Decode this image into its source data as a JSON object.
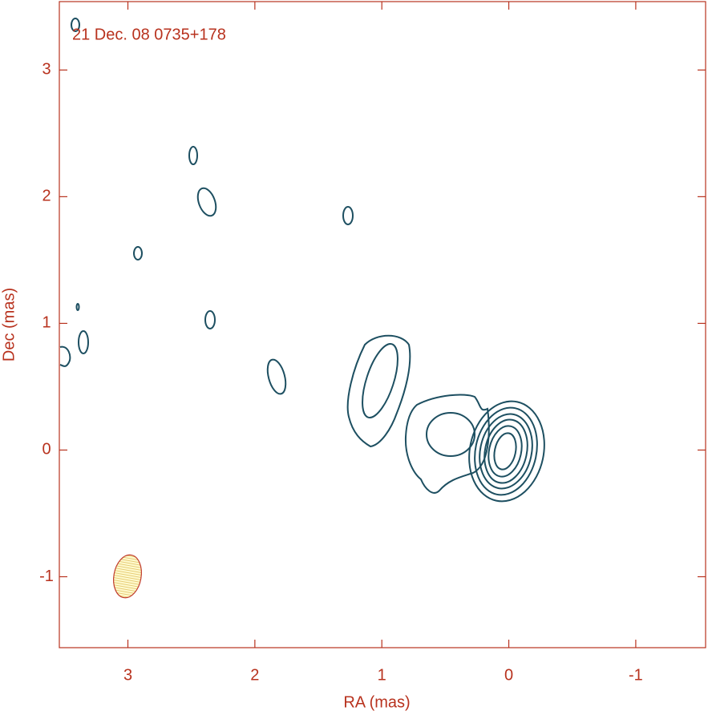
{
  "chart_data": {
    "type": "contour",
    "title": "21 Dec. 08  0735+178",
    "x_label": "RA (mas)",
    "y_label": "Dec (mas)",
    "xlim": [
      3.54,
      -1.55
    ],
    "ylim": [
      -1.56,
      3.54
    ],
    "xticks": [
      3,
      2,
      1,
      0,
      -1
    ],
    "yticks": [
      -1,
      0,
      1,
      2,
      3
    ],
    "color": "#1d4f61"
  }
}
